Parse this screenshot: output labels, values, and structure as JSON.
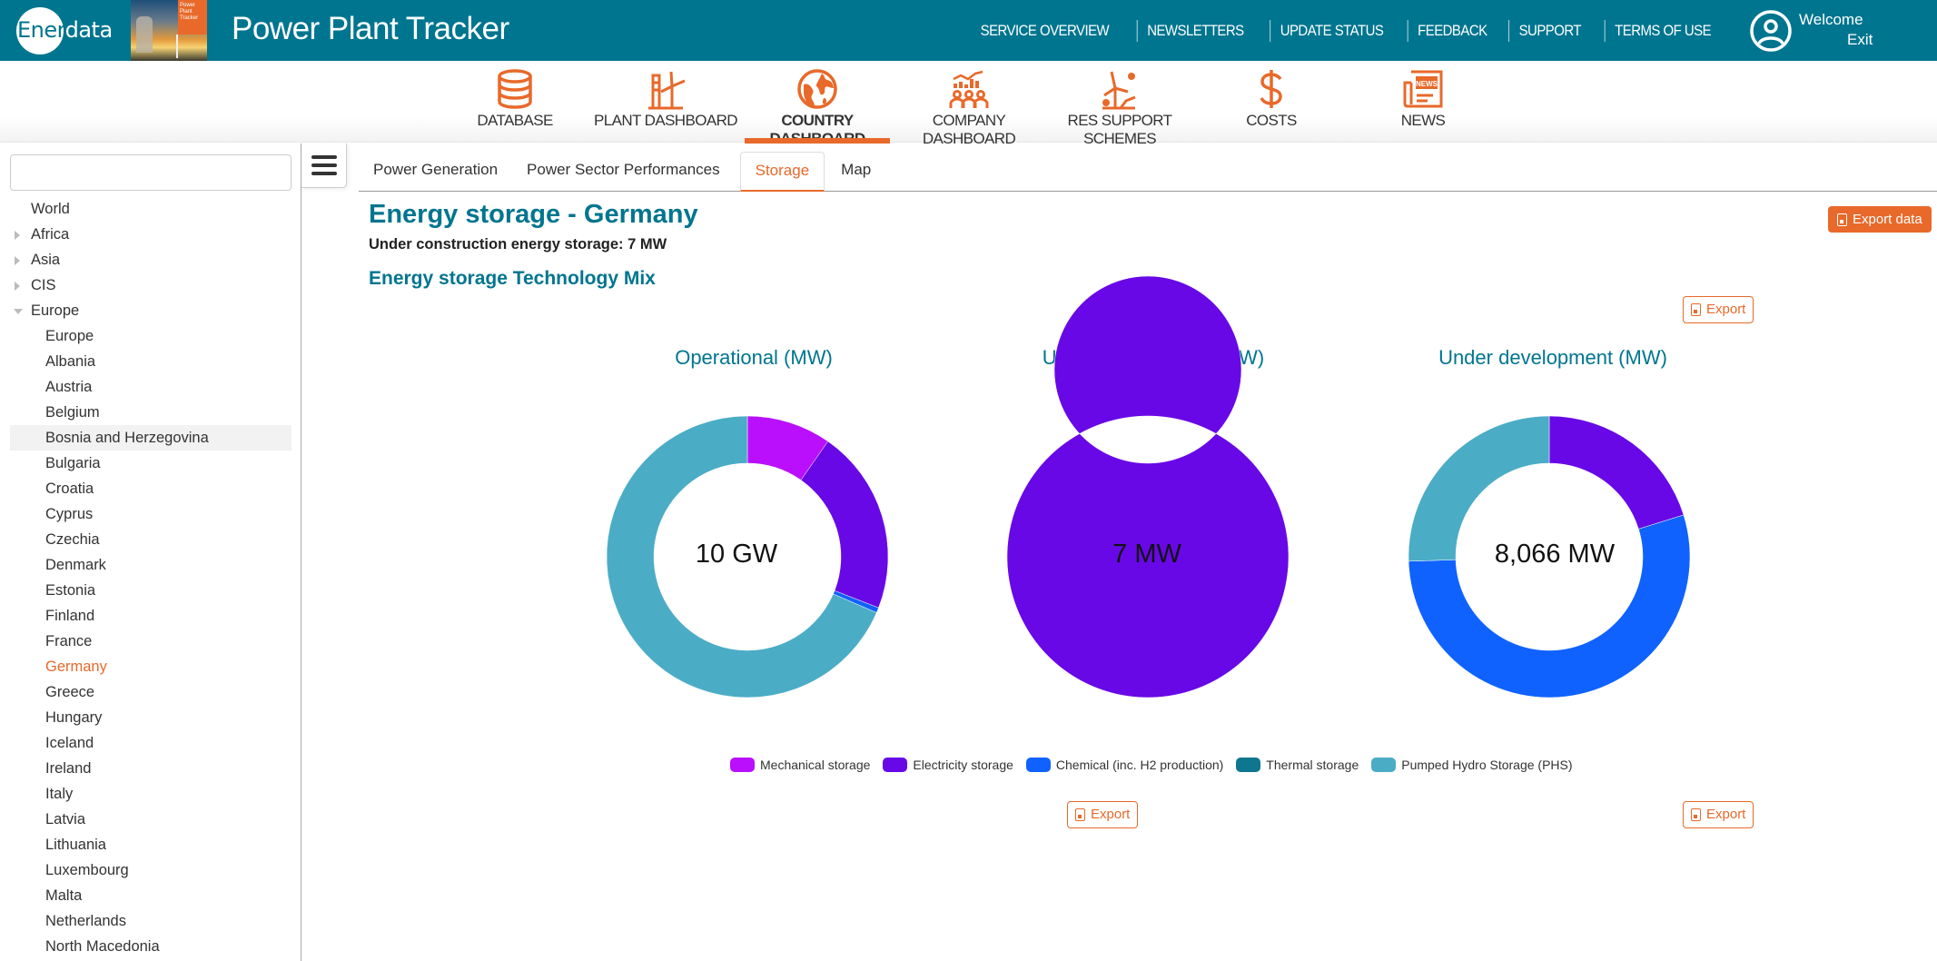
{
  "header": {
    "logo_part1": "Ener",
    "logo_part2": "data",
    "brand_tag": "Power Plant Tracker",
    "app_title": "Power Plant Tracker",
    "links": [
      "SERVICE OVERVIEW",
      "NEWSLETTERS",
      "UPDATE STATUS",
      "FEEDBACK",
      "SUPPORT",
      "TERMS OF USE"
    ],
    "welcome": "Welcome",
    "exit": "Exit"
  },
  "modules": [
    {
      "label": "DATABASE",
      "icon": "database-icon",
      "active": false
    },
    {
      "label": "PLANT DASHBOARD",
      "icon": "plant-icon",
      "active": false
    },
    {
      "label": "COUNTRY DASHBOARD",
      "icon": "globe-icon",
      "active": true
    },
    {
      "label": "COMPANY DASHBOARD",
      "icon": "company-icon",
      "active": false
    },
    {
      "label": "RES SUPPORT SCHEMES",
      "icon": "renewables-icon",
      "active": false
    },
    {
      "label": "COSTS",
      "icon": "dollar-icon",
      "active": false
    },
    {
      "label": "NEWS",
      "icon": "news-icon",
      "active": false
    }
  ],
  "sidebar": {
    "search_value": "",
    "search_placeholder": "",
    "tree": [
      {
        "label": "World",
        "level": 0,
        "toggle": "none"
      },
      {
        "label": "Africa",
        "level": 0,
        "toggle": "collapsed"
      },
      {
        "label": "Asia",
        "level": 0,
        "toggle": "collapsed"
      },
      {
        "label": "CIS",
        "level": 0,
        "toggle": "collapsed"
      },
      {
        "label": "Europe",
        "level": 0,
        "toggle": "expanded"
      },
      {
        "label": "Europe",
        "level": 1
      },
      {
        "label": "Albania",
        "level": 1
      },
      {
        "label": "Austria",
        "level": 1
      },
      {
        "label": "Belgium",
        "level": 1
      },
      {
        "label": "Bosnia and Herzegovina",
        "level": 1,
        "hover": true
      },
      {
        "label": "Bulgaria",
        "level": 1
      },
      {
        "label": "Croatia",
        "level": 1
      },
      {
        "label": "Cyprus",
        "level": 1
      },
      {
        "label": "Czechia",
        "level": 1
      },
      {
        "label": "Denmark",
        "level": 1
      },
      {
        "label": "Estonia",
        "level": 1
      },
      {
        "label": "Finland",
        "level": 1
      },
      {
        "label": "France",
        "level": 1
      },
      {
        "label": "Germany",
        "level": 1,
        "selected": true
      },
      {
        "label": "Greece",
        "level": 1
      },
      {
        "label": "Hungary",
        "level": 1
      },
      {
        "label": "Iceland",
        "level": 1
      },
      {
        "label": "Ireland",
        "level": 1
      },
      {
        "label": "Italy",
        "level": 1
      },
      {
        "label": "Latvia",
        "level": 1
      },
      {
        "label": "Lithuania",
        "level": 1
      },
      {
        "label": "Luxembourg",
        "level": 1
      },
      {
        "label": "Malta",
        "level": 1
      },
      {
        "label": "Netherlands",
        "level": 1
      },
      {
        "label": "North Macedonia",
        "level": 1
      }
    ]
  },
  "tabs": [
    {
      "label": "Power Generation",
      "active": false
    },
    {
      "label": "Power Sector Performances",
      "active": false
    },
    {
      "label": "Storage",
      "active": true
    },
    {
      "label": "Map",
      "active": false
    }
  ],
  "content": {
    "title": "Energy storage - Germany",
    "subtitle": "Under construction energy storage: 7 MW",
    "section_title": "Energy storage Technology Mix",
    "export_data_label": "Export data",
    "export_label": "Export"
  },
  "colors": {
    "brand_teal": "#00758f",
    "accent_orange": "#e8692a"
  },
  "chart_data": [
    {
      "type": "pie",
      "variant": "donut",
      "title": "Operational (MW)",
      "center_label": "10 GW",
      "categories": [
        "Mechanical storage",
        "Electricity storage",
        "Chemical (inc. H2 production)",
        "Thermal storage",
        "Pumped Hydro Storage (PHS)"
      ],
      "values_share_pct": [
        9.7,
        21.2,
        0.6,
        0,
        68.5
      ]
    },
    {
      "type": "pie",
      "variant": "donut",
      "title": "Under construction (MW)",
      "center_label": "7 MW",
      "categories": [
        "Mechanical storage",
        "Electricity storage",
        "Chemical (inc. H2 production)",
        "Thermal storage",
        "Pumped Hydro Storage (PHS)"
      ],
      "values_share_pct": [
        0,
        100,
        0,
        0,
        0
      ]
    },
    {
      "type": "pie",
      "variant": "donut",
      "title": "Under development (MW)",
      "center_label": "8,066 MW",
      "categories": [
        "Mechanical storage",
        "Electricity storage",
        "Chemical (inc. H2 production)",
        "Thermal storage",
        "Pumped Hydro Storage (PHS)"
      ],
      "values_share_pct": [
        0,
        20.2,
        54.3,
        0,
        25.5
      ]
    }
  ],
  "legend": [
    {
      "label": "Mechanical storage",
      "color": "#b90ffc"
    },
    {
      "label": "Electricity storage",
      "color": "#6808e6"
    },
    {
      "label": "Chemical (inc. H2 production)",
      "color": "#0f62fe"
    },
    {
      "label": "Thermal storage",
      "color": "#0f768f"
    },
    {
      "label": "Pumped Hydro Storage (PHS)",
      "color": "#4bacc6"
    }
  ]
}
